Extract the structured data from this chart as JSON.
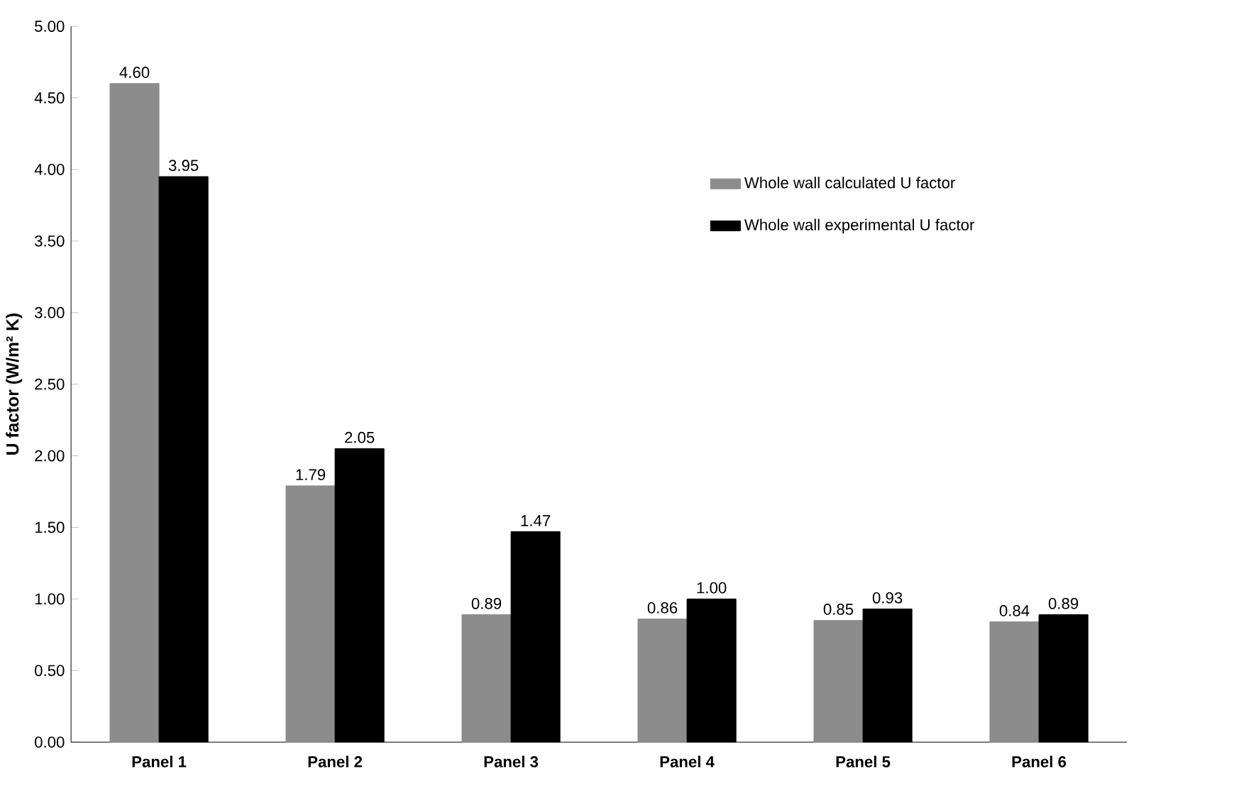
{
  "chart_data": {
    "type": "bar",
    "ylabel": "U factor (W/m² K)",
    "categories": [
      "Panel 1",
      "Panel 2",
      "Panel 3",
      "Panel 4",
      "Panel 5",
      "Panel 6"
    ],
    "series": [
      {
        "name": "Whole wall calculated U factor",
        "color": "#8c8c8c",
        "values": [
          4.6,
          1.79,
          0.89,
          0.86,
          0.85,
          0.84
        ],
        "value_labels": [
          "4.60",
          "1.79",
          "0.89",
          "0.86",
          "0.85",
          "0.84"
        ]
      },
      {
        "name": "Whole wall experimental U factor",
        "color": "#000000",
        "values": [
          3.95,
          2.05,
          1.47,
          1.0,
          0.93,
          0.89
        ],
        "value_labels": [
          "3.95",
          "2.05",
          "1.47",
          "1.00",
          "0.93",
          "0.89"
        ]
      }
    ],
    "ylim": [
      0,
      5
    ],
    "yticks": [
      {
        "value": 0,
        "label": "0.00"
      },
      {
        "value": 0.5,
        "label": "0.50"
      },
      {
        "value": 1,
        "label": "1.00"
      },
      {
        "value": 1.5,
        "label": "1.50"
      },
      {
        "value": 2,
        "label": "2.00"
      },
      {
        "value": 2.5,
        "label": "2.50"
      },
      {
        "value": 3,
        "label": "3.00"
      },
      {
        "value": 3.5,
        "label": "3.50"
      },
      {
        "value": 4,
        "label": "4.00"
      },
      {
        "value": 4.5,
        "label": "4.50"
      },
      {
        "value": 5,
        "label": "5.00"
      }
    ],
    "grid": false,
    "legend": "top right"
  }
}
